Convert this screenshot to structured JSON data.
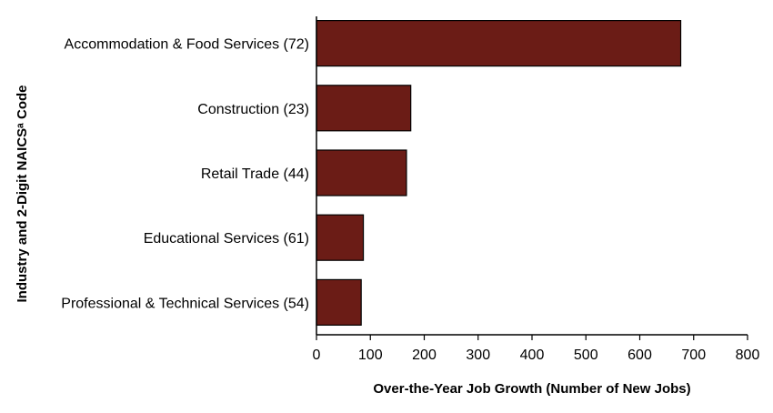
{
  "chart_data": {
    "type": "bar",
    "orientation": "horizontal",
    "categories": [
      "Accommodation & Food Services (72)",
      "Construction (23)",
      "Retail Trade (44)",
      "Educational Services (61)",
      "Professional & Technical Services (54)"
    ],
    "values": [
      676,
      175,
      167,
      87,
      83
    ],
    "xlabel": "Over-the-Year Job Growth (Number of New Jobs)",
    "ylabel": "Industry and 2-Digit NAICSᵃ Code",
    "xlim": [
      0,
      800
    ],
    "xticks": [
      "0",
      "100",
      "200",
      "300",
      "400",
      "500",
      "600",
      "700",
      "800"
    ],
    "grid": false,
    "legend": "none",
    "colors": {
      "bar_fill": "#6b1c16",
      "bar_stroke": "#000000",
      "axis": "#000000"
    }
  }
}
